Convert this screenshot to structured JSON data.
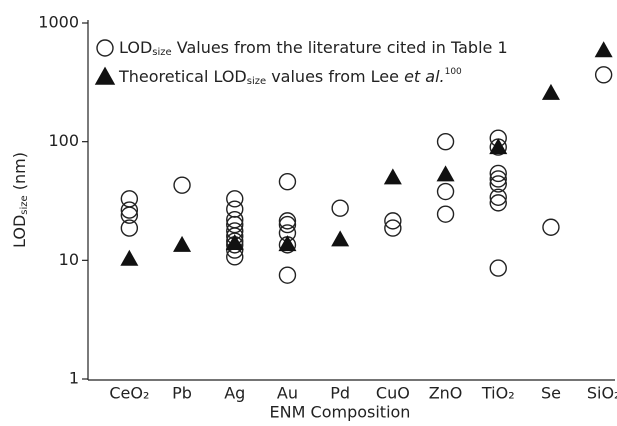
{
  "chart_data": {
    "type": "scatter",
    "xlabel": "ENM Composition",
    "ylabel": [
      {
        "text": "LOD"
      },
      {
        "text": "size",
        "style": "sub"
      },
      {
        "text": " (nm)"
      }
    ],
    "categories": [
      "CeO₂",
      "Pb",
      "Ag",
      "Au",
      "Pd",
      "CuO",
      "ZnO",
      "TiO₂",
      "Se",
      "SiO₂"
    ],
    "ylog": true,
    "ylim": [
      1,
      1000
    ],
    "yticks": [
      1,
      10,
      100,
      1000
    ],
    "legend": "top-left",
    "series": [
      {
        "name": [
          {
            "text": "LOD"
          },
          {
            "text": "size",
            "style": "sub"
          },
          {
            "text": " Values from the literature cited in Table 1"
          }
        ],
        "marker": "circle",
        "color": "#222",
        "values": [
          [
            33,
            26.5,
            24,
            18.7
          ],
          [
            43
          ],
          [
            33,
            27,
            22,
            20,
            17.7,
            16,
            14.5,
            13.5,
            12.2,
            10.7
          ],
          [
            46,
            21.5,
            20,
            17,
            13.5,
            7.5
          ],
          [
            27.5
          ],
          [
            21.5,
            18.7
          ],
          [
            100,
            38,
            24.5
          ],
          [
            107,
            90,
            54,
            48.5,
            44,
            34,
            30.5,
            8.6
          ],
          [
            19
          ],
          [
            366
          ]
        ]
      },
      {
        "name": [
          {
            "text": "Theoretical LOD"
          },
          {
            "text": "size",
            "style": "sub"
          },
          {
            "text": " values from Lee "
          },
          {
            "text": "et al.",
            "style": "italic"
          },
          {
            "text": "100",
            "style": "sup"
          }
        ],
        "marker": "triangle",
        "color": "#111",
        "values": [
          10.3,
          13.5,
          14,
          13.7,
          15,
          50,
          53,
          90,
          258,
          590
        ]
      }
    ]
  }
}
